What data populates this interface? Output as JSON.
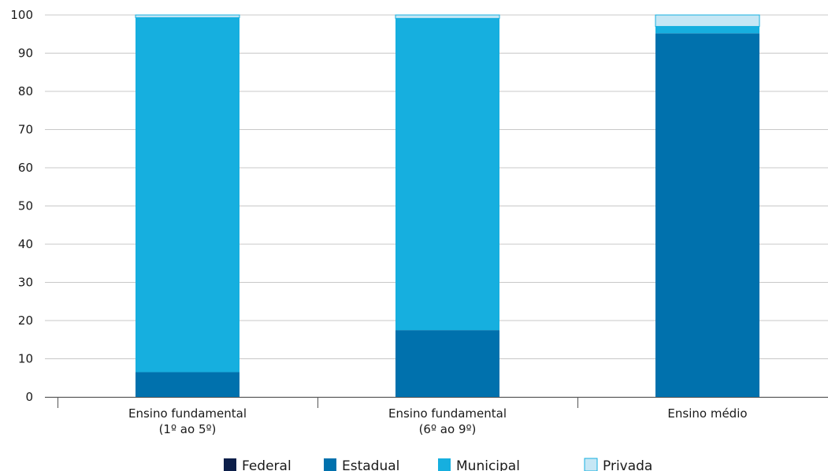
{
  "chart_data": {
    "type": "bar",
    "stacked": true,
    "title": "",
    "xlabel": "",
    "ylabel": "",
    "ylim": [
      0,
      100
    ],
    "yticks": [
      0,
      10,
      20,
      30,
      40,
      50,
      60,
      70,
      80,
      90,
      100
    ],
    "grid": true,
    "legend_position": "bottom",
    "categories": [
      [
        "Ensino fundamental",
        "(1º ao 5º)"
      ],
      [
        "Ensino fundamental",
        "(6º ao 9º)"
      ],
      [
        "Ensino médio"
      ]
    ],
    "series": [
      {
        "name": "Federal",
        "color": "#0d1f4a",
        "values": [
          0,
          0,
          0
        ]
      },
      {
        "name": "Estadual",
        "color": "#0071ad",
        "values": [
          6.5,
          17.5,
          95.2
        ]
      },
      {
        "name": "Municipal",
        "color": "#16afdf",
        "values": [
          92.8,
          81.6,
          1.8
        ]
      },
      {
        "name": "Privada",
        "color": "#c6e7f5",
        "values": [
          0.7,
          0.9,
          3.0
        ]
      }
    ]
  }
}
